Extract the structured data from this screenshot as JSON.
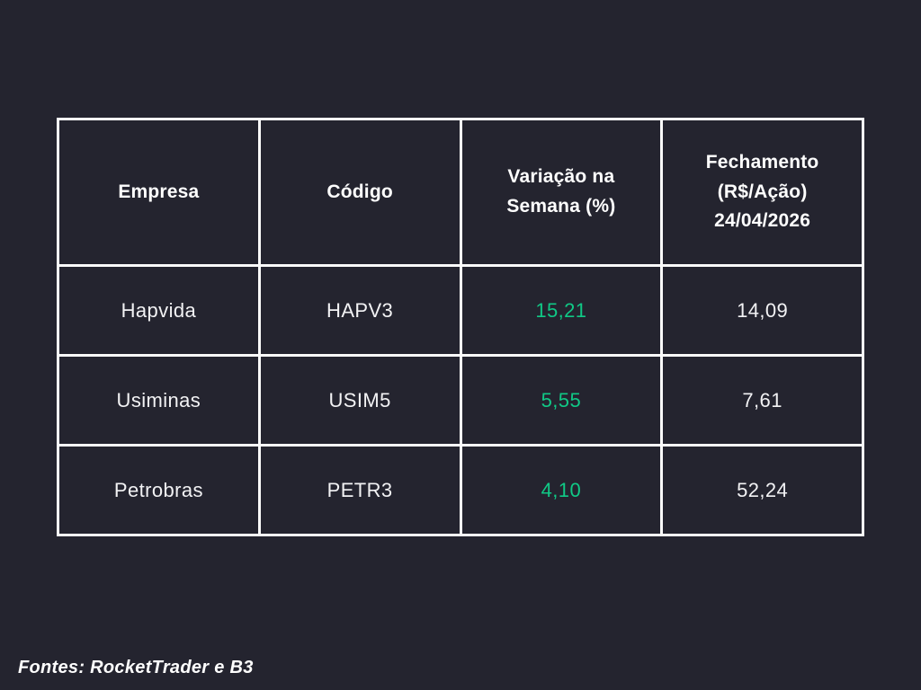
{
  "page": {
    "background_color": "#24242F",
    "table_border_color": "#FAFAFA",
    "header_text_color": "#FFFFFF",
    "body_text_color": "#F2F2F4",
    "positive_value_color": "#10C986"
  },
  "chart_data": {
    "type": "table",
    "title": "",
    "columns": [
      "Empresa",
      "Código",
      "Variação na\nSemana (%)",
      "Fechamento\n(R$/Ação)\n24/04/2026"
    ],
    "rows": [
      [
        "Hapvida",
        "HAPV3",
        "15,21",
        "14,09"
      ],
      [
        "Usiminas",
        "USIM5",
        "5,55",
        "7,61"
      ],
      [
        "Petrobras",
        "PETR3",
        "4,10",
        "52,24"
      ]
    ],
    "numeric": {
      "variacao_semana_pct": [
        15.21,
        5.55,
        4.1
      ],
      "fechamento_rs_acao": [
        14.09,
        7.61,
        52.24
      ]
    },
    "layout_hints": {
      "grid": "full white borders",
      "variation_column_color": "#10C986",
      "closing_date": "24/04/2026"
    }
  },
  "footer": {
    "sources_text": "Fontes: RocketTrader e B3"
  }
}
